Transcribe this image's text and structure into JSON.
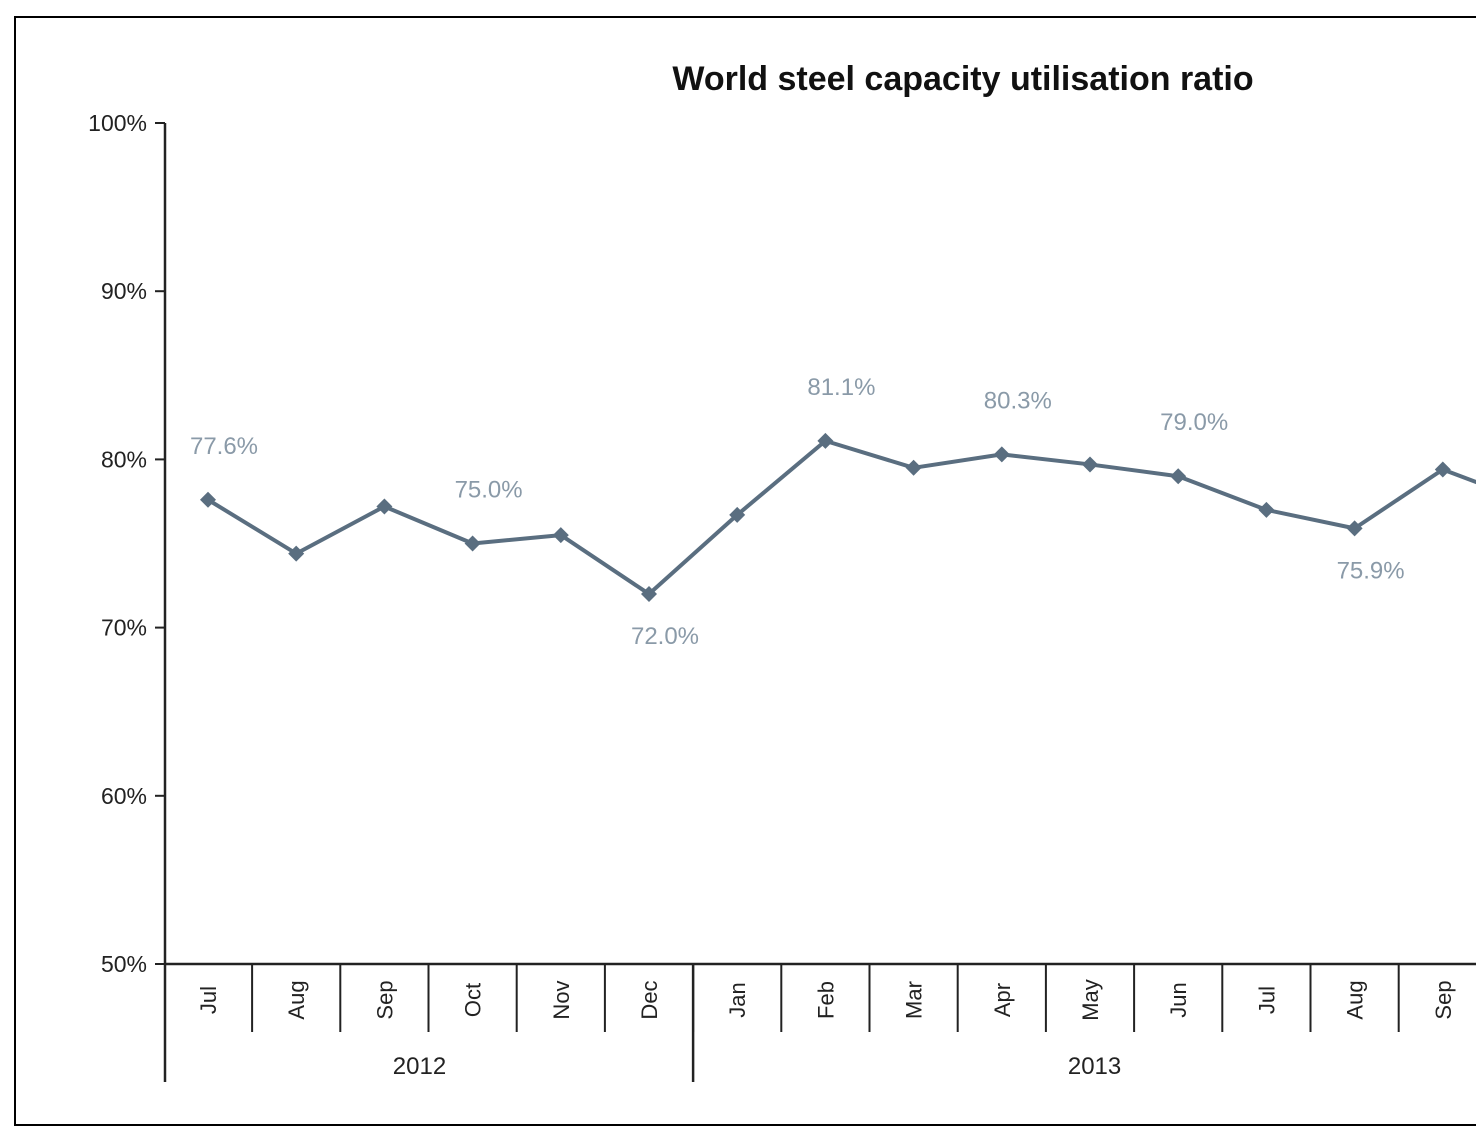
{
  "chart_data": {
    "type": "line",
    "title": "World steel capacity utilisation ratio",
    "xlabel": "",
    "ylabel": "",
    "ylim": [
      0.5,
      1.0
    ],
    "y_ticks": [
      "50%",
      "60%",
      "70%",
      "80%",
      "90%",
      "100%"
    ],
    "y_tick_values": [
      0.5,
      0.6,
      0.7,
      0.8,
      0.9,
      1.0
    ],
    "grid": false,
    "categories": [
      "Jul",
      "Aug",
      "Sep",
      "Oct",
      "Nov",
      "Dec",
      "Jan",
      "Feb",
      "Mar",
      "Apr",
      "May",
      "Jun",
      "Jul",
      "Aug",
      "Sep"
    ],
    "years": [
      {
        "label": "2012",
        "months": 6
      },
      {
        "label": "2013",
        "months": 9
      }
    ],
    "series": [
      {
        "values": [
          0.776,
          0.744,
          0.772,
          0.75,
          0.755,
          0.72,
          0.767,
          0.811,
          0.795,
          0.803,
          0.797,
          0.79,
          0.77,
          0.759,
          0.794
        ],
        "color": "#5a6e80"
      }
    ],
    "data_labels": [
      {
        "index": 0,
        "text": "77.6%",
        "pos": "above"
      },
      {
        "index": 3,
        "text": "75.0%",
        "pos": "above"
      },
      {
        "index": 5,
        "text": "72.0%",
        "pos": "below"
      },
      {
        "index": 7,
        "text": "81.1%",
        "pos": "above"
      },
      {
        "index": 9,
        "text": "80.3%",
        "pos": "above"
      },
      {
        "index": 11,
        "text": "79.0%",
        "pos": "above"
      },
      {
        "index": 13,
        "text": "75.9%",
        "pos": "below"
      }
    ],
    "colors": {
      "line": "#5a6e80",
      "marker": "#5a6e80",
      "data_label": "#8a9aa8"
    }
  }
}
